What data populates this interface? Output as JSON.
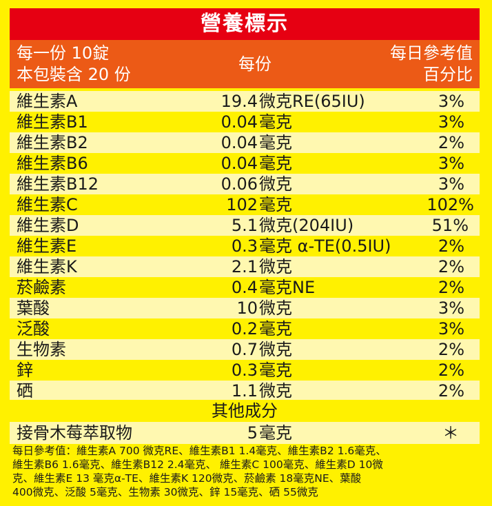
{
  "title": "營養標示",
  "header": {
    "per_serving_line1": "每一份 10錠",
    "per_serving_line2": "本包裝含 20 份",
    "amount_label": "每份",
    "dv_line1": "每日參考值",
    "dv_line2": "百分比"
  },
  "rows": [
    {
      "name": "維生素A",
      "amount": "19.4",
      "unit": "微克RE(65IU)",
      "pct": "3%"
    },
    {
      "name": "維生素B1",
      "amount": "0.04",
      "unit": "毫克",
      "pct": "3%"
    },
    {
      "name": "維生素B2",
      "amount": "0.04",
      "unit": "毫克",
      "pct": "2%"
    },
    {
      "name": "維生素B6",
      "amount": "0.04",
      "unit": "毫克",
      "pct": "3%"
    },
    {
      "name": "維生素B12",
      "amount": "0.06",
      "unit": "微克",
      "pct": "3%"
    },
    {
      "name": "維生素C",
      "amount": "102",
      "unit": "毫克",
      "pct": "102%"
    },
    {
      "name": "維生素D",
      "amount": "5.1",
      "unit": "微克(204IU)",
      "pct": "51%"
    },
    {
      "name": "維生素E",
      "amount": "0.3",
      "unit": "毫克 α-TE(0.5IU)",
      "pct": "2%"
    },
    {
      "name": "維生素K",
      "amount": "2.1",
      "unit": "微克",
      "pct": "2%"
    },
    {
      "name": "菸鹼素",
      "amount": "0.4",
      "unit": "毫克NE",
      "pct": "2%"
    },
    {
      "name": "葉酸",
      "amount": "10",
      "unit": "微克",
      "pct": "3%"
    },
    {
      "name": "泛酸",
      "amount": "0.2",
      "unit": "毫克",
      "pct": "3%"
    },
    {
      "name": "生物素",
      "amount": "0.7",
      "unit": "微克",
      "pct": "2%"
    },
    {
      "name": "鋅",
      "amount": "0.3",
      "unit": "毫克",
      "pct": "2%"
    },
    {
      "name": "硒",
      "amount": "1.1",
      "unit": "微克",
      "pct": "2%"
    }
  ],
  "other_title": "其他成分",
  "other_rows": [
    {
      "name": "接骨木莓萃取物",
      "amount": "5",
      "unit": "毫克",
      "pct": "＊"
    }
  ],
  "footnote_lines": [
    "每日參考值：維生素A 700 微克RE、維生素B1 1.4毫克、維生素B2 1.6毫克、",
    "維生素B6 1.6毫克、維生素B12 2.4毫克、 維生素C 100毫克、維生素D 10微",
    "克、維生素E 13 毫克α-TE、維生素K 120微克、菸鹼素 18毫克NE、葉酸",
    "400微克、泛酸 5毫克、生物素 30微克、鋅 15毫克、硒 55微克"
  ]
}
